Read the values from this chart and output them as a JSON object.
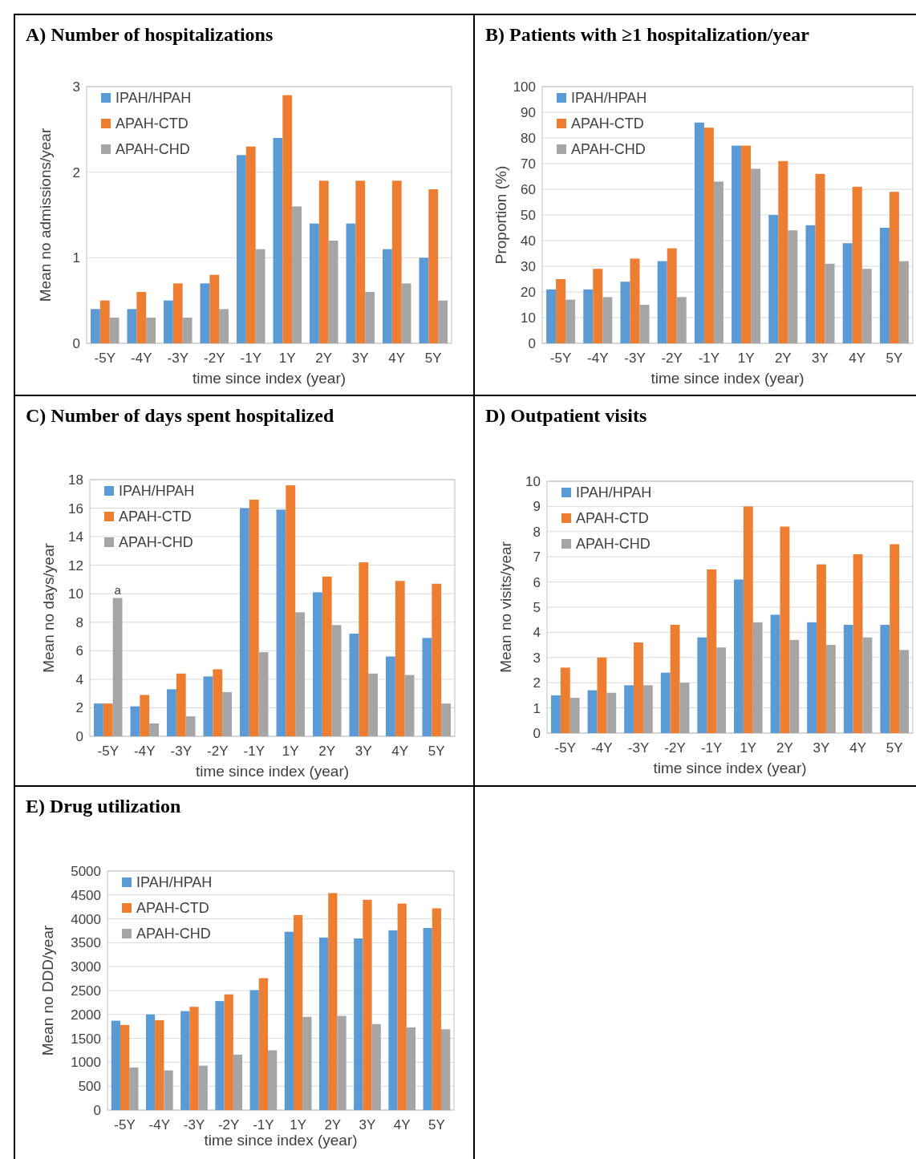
{
  "chart_data": [
    {
      "type": "bar",
      "title": "A) Number of hospitalizations",
      "xlabel": "time since index (year)",
      "ylabel": "Mean no admissions/year",
      "categories": [
        "-5Y",
        "-4Y",
        "-3Y",
        "-2Y",
        "-1Y",
        "1Y",
        "2Y",
        "3Y",
        "4Y",
        "5Y"
      ],
      "series": [
        {
          "name": "IPAH/HPAH",
          "color": "#5b9bd5",
          "values": [
            0.4,
            0.4,
            0.5,
            0.7,
            2.2,
            2.4,
            1.4,
            1.4,
            1.1,
            1.0
          ]
        },
        {
          "name": "APAH-CTD",
          "color": "#ed7d31",
          "values": [
            0.5,
            0.6,
            0.7,
            0.8,
            2.3,
            2.9,
            1.9,
            1.9,
            1.9,
            1.8
          ]
        },
        {
          "name": "APAH-CHD",
          "color": "#a5a5a5",
          "values": [
            0.3,
            0.3,
            0.3,
            0.4,
            1.1,
            1.6,
            1.2,
            0.6,
            0.7,
            0.5
          ]
        }
      ],
      "ylim": [
        0,
        3
      ],
      "yticks": [
        0,
        1,
        2,
        3
      ],
      "grid": "y",
      "legend": "top left"
    },
    {
      "type": "bar",
      "title": "B) Patients with ≥1 hospitalization/year",
      "xlabel": "time since index (year)",
      "ylabel": "Proportion (%)",
      "categories": [
        "-5Y",
        "-4Y",
        "-3Y",
        "-2Y",
        "-1Y",
        "1Y",
        "2Y",
        "3Y",
        "4Y",
        "5Y"
      ],
      "series": [
        {
          "name": "IPAH/HPAH",
          "color": "#5b9bd5",
          "values": [
            21,
            21,
            24,
            32,
            86,
            77,
            50,
            46,
            39,
            45
          ]
        },
        {
          "name": "APAH-CTD",
          "color": "#ed7d31",
          "values": [
            25,
            29,
            33,
            37,
            84,
            77,
            71,
            66,
            61,
            59
          ]
        },
        {
          "name": "APAH-CHD",
          "color": "#a5a5a5",
          "values": [
            17,
            18,
            15,
            18,
            63,
            68,
            44,
            31,
            29,
            32
          ]
        }
      ],
      "ylim": [
        0,
        100
      ],
      "yticks": [
        0,
        10,
        20,
        30,
        40,
        50,
        60,
        70,
        80,
        90,
        100
      ],
      "grid": "y",
      "legend": "top left"
    },
    {
      "type": "bar",
      "title": "C) Number of days spent hospitalized",
      "xlabel": "time since index (year)",
      "ylabel": "Mean no days/year",
      "categories": [
        "-5Y",
        "-4Y",
        "-3Y",
        "-2Y",
        "-1Y",
        "1Y",
        "2Y",
        "3Y",
        "4Y",
        "5Y"
      ],
      "series": [
        {
          "name": "IPAH/HPAH",
          "color": "#5b9bd5",
          "values": [
            2.3,
            2.1,
            3.3,
            4.2,
            16.0,
            15.9,
            10.1,
            7.2,
            5.6,
            6.9
          ]
        },
        {
          "name": "APAH-CTD",
          "color": "#ed7d31",
          "values": [
            2.3,
            2.9,
            4.4,
            4.7,
            16.6,
            17.6,
            11.2,
            12.2,
            10.9,
            10.7
          ]
        },
        {
          "name": "APAH-CHD",
          "color": "#a5a5a5",
          "values": [
            9.7,
            0.9,
            1.4,
            3.1,
            5.9,
            8.7,
            7.8,
            4.4,
            4.3,
            2.3
          ]
        }
      ],
      "ylim": [
        0,
        18
      ],
      "yticks": [
        0,
        2,
        4,
        6,
        8,
        10,
        12,
        14,
        16,
        18
      ],
      "grid": "y",
      "legend": "top left",
      "annotations": [
        "a"
      ]
    },
    {
      "type": "bar",
      "title": "D) Outpatient visits",
      "xlabel": "time since index (year)",
      "ylabel": "Mean no visits/year",
      "categories": [
        "-5Y",
        "-4Y",
        "-3Y",
        "-2Y",
        "-1Y",
        "1Y",
        "2Y",
        "3Y",
        "4Y",
        "5Y"
      ],
      "series": [
        {
          "name": "IPAH/HPAH",
          "color": "#5b9bd5",
          "values": [
            1.5,
            1.7,
            1.9,
            2.4,
            3.8,
            6.1,
            4.7,
            4.4,
            4.3,
            4.3
          ]
        },
        {
          "name": "APAH-CTD",
          "color": "#ed7d31",
          "values": [
            2.6,
            3.0,
            3.6,
            4.3,
            6.5,
            9.0,
            8.2,
            6.7,
            7.1,
            7.5
          ]
        },
        {
          "name": "APAH-CHD",
          "color": "#a5a5a5",
          "values": [
            1.4,
            1.6,
            1.9,
            2.0,
            3.4,
            4.4,
            3.7,
            3.5,
            3.8,
            3.3
          ]
        }
      ],
      "ylim": [
        0,
        10
      ],
      "yticks": [
        0,
        1,
        2,
        3,
        4,
        5,
        6,
        7,
        8,
        9,
        10
      ],
      "grid": "y",
      "legend": "top left"
    },
    {
      "type": "bar",
      "title": "E) Drug utilization",
      "xlabel": "time since index (year)",
      "ylabel": "Mean no DDD/year",
      "categories": [
        "-5Y",
        "-4Y",
        "-3Y",
        "-2Y",
        "-1Y",
        "1Y",
        "2Y",
        "3Y",
        "4Y",
        "5Y"
      ],
      "series": [
        {
          "name": "IPAH/HPAH",
          "color": "#5b9bd5",
          "values": [
            1870,
            2000,
            2070,
            2280,
            2510,
            3730,
            3610,
            3590,
            3760,
            3810
          ]
        },
        {
          "name": "APAH-CTD",
          "color": "#ed7d31",
          "values": [
            1780,
            1880,
            2160,
            2420,
            2760,
            4080,
            4540,
            4400,
            4320,
            4220
          ]
        },
        {
          "name": "APAH-CHD",
          "color": "#a5a5a5",
          "values": [
            890,
            830,
            930,
            1160,
            1250,
            1950,
            1970,
            1800,
            1730,
            1690
          ]
        }
      ],
      "ylim": [
        0,
        5000
      ],
      "yticks": [
        0,
        500,
        1000,
        1500,
        2000,
        2500,
        3000,
        3500,
        4000,
        4500,
        5000
      ],
      "grid": "y",
      "legend": "top left"
    }
  ]
}
